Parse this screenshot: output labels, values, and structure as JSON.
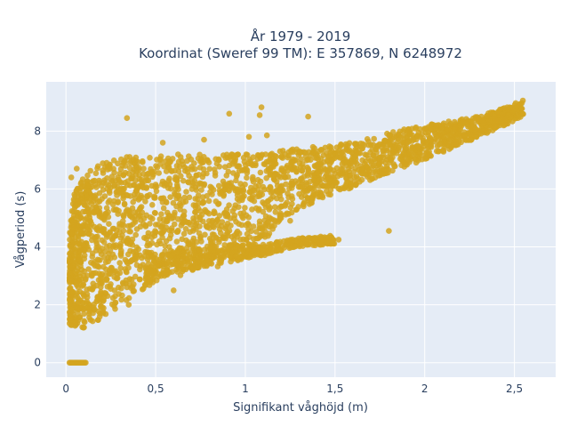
{
  "chart_data": {
    "type": "scatter",
    "title_line1": "År 1979 - 2019",
    "title_line2": "Koordinat (Sweref 99 TM): E 357869, N 6248972",
    "xlabel": "Signifikant våghöjd (m)",
    "ylabel": "Vågperiod (s)",
    "xlim": [
      -0.11,
      2.73
    ],
    "ylim": [
      -0.5,
      9.7
    ],
    "x_ticks": [
      0,
      0.5,
      1,
      1.5,
      2,
      2.5
    ],
    "x_tick_labels": [
      "0",
      "0,5",
      "1",
      "1,5",
      "2",
      "2,5"
    ],
    "y_ticks": [
      0,
      2,
      4,
      6,
      8
    ],
    "y_tick_labels": [
      "0",
      "2",
      "4",
      "6",
      "8"
    ],
    "grid": true,
    "legend": "none",
    "colors": {
      "background": "#E5ECF6",
      "grid": "#FFFFFF",
      "marker": "#D4A41F",
      "text": "#2a3f5f"
    },
    "main_cloud_envelope": {
      "description": "dense scatter of wave period vs significant wave height",
      "upper": [
        [
          0.02,
          4.6
        ],
        [
          0.05,
          6.0
        ],
        [
          0.1,
          6.5
        ],
        [
          0.2,
          6.9
        ],
        [
          0.3,
          7.1
        ],
        [
          0.5,
          7.2
        ],
        [
          0.8,
          7.2
        ],
        [
          1.0,
          7.2
        ],
        [
          1.3,
          7.4
        ],
        [
          1.6,
          7.6
        ],
        [
          1.9,
          8.1
        ],
        [
          2.2,
          8.4
        ],
        [
          2.4,
          8.7
        ],
        [
          2.55,
          9.1
        ]
      ],
      "lower": [
        [
          0.02,
          1.3
        ],
        [
          0.1,
          1.2
        ],
        [
          0.2,
          1.5
        ],
        [
          0.35,
          2.2
        ],
        [
          0.5,
          2.8
        ],
        [
          0.7,
          3.1
        ],
        [
          0.9,
          3.4
        ],
        [
          1.05,
          3.7
        ],
        [
          1.2,
          5.0
        ],
        [
          1.4,
          5.6
        ],
        [
          1.7,
          6.3
        ],
        [
          2.0,
          7.0
        ],
        [
          2.3,
          7.8
        ],
        [
          2.55,
          8.5
        ]
      ]
    },
    "lower_band_envelope": {
      "upper": [
        [
          0.45,
          3.7
        ],
        [
          0.7,
          3.9
        ],
        [
          0.9,
          4.1
        ],
        [
          1.1,
          4.1
        ],
        [
          1.3,
          4.3
        ],
        [
          1.5,
          4.4
        ]
      ],
      "lower": [
        [
          0.45,
          2.9
        ],
        [
          0.7,
          3.2
        ],
        [
          0.9,
          3.5
        ],
        [
          1.1,
          3.7
        ],
        [
          1.3,
          4.0
        ],
        [
          1.5,
          4.1
        ]
      ]
    },
    "zero_period_points": {
      "x_range": [
        0.02,
        0.11
      ],
      "y": 0
    },
    "outliers": [
      [
        0.34,
        8.45
      ],
      [
        0.91,
        8.6
      ],
      [
        1.09,
        8.82
      ],
      [
        1.08,
        8.55
      ],
      [
        1.35,
        8.5
      ],
      [
        0.54,
        7.6
      ],
      [
        0.77,
        7.7
      ],
      [
        1.02,
        7.8
      ],
      [
        1.12,
        7.85
      ],
      [
        1.8,
        4.55
      ],
      [
        1.48,
        4.2
      ],
      [
        1.52,
        4.25
      ],
      [
        1.38,
        4.3
      ],
      [
        0.03,
        6.4
      ],
      [
        0.06,
        6.7
      ],
      [
        0.12,
        6.1
      ],
      [
        0.9,
        5.05
      ],
      [
        1.25,
        4.9
      ],
      [
        0.35,
        2.0
      ],
      [
        0.6,
        2.5
      ]
    ]
  }
}
